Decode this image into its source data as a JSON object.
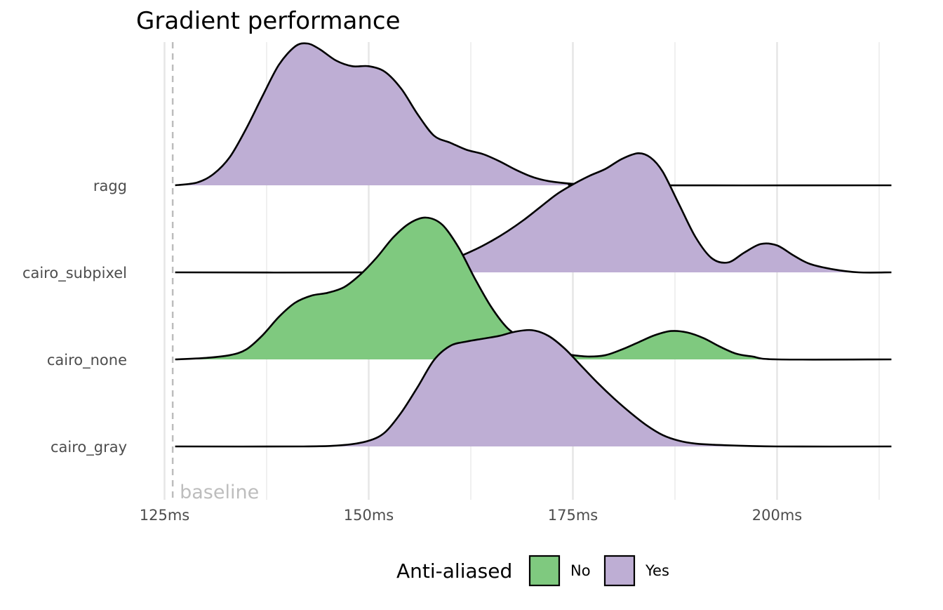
{
  "chart_data": {
    "type": "area",
    "subtype": "ridgeline-density",
    "title": "Gradient performance",
    "xlabel": "",
    "ylabel": "",
    "x_unit": "ms",
    "xlim": [
      124.6,
      214.0
    ],
    "x_ticks": [
      125,
      150,
      175,
      200
    ],
    "x_tick_labels": [
      "125ms",
      "150ms",
      "175ms",
      "200ms"
    ],
    "grid": true,
    "baseline": {
      "value": 126,
      "label": "baseline"
    },
    "categories": [
      "ragg",
      "cairo_subpixel",
      "cairo_none",
      "cairo_gray"
    ],
    "legend": {
      "title": "Anti-aliased",
      "position": "bottom",
      "entries": [
        {
          "label": "No",
          "color": "#7fc97f"
        },
        {
          "label": "Yes",
          "color": "#beaed4"
        }
      ]
    },
    "colors": {
      "No": "#7fc97f",
      "Yes": "#beaed4"
    },
    "x_range": [
      126.3,
      214.0
    ],
    "series": [
      {
        "name": "ragg",
        "anti_aliased": "Yes",
        "density": [
          [
            126.3,
            0.0
          ],
          [
            129,
            0.02
          ],
          [
            131,
            0.08
          ],
          [
            133,
            0.2
          ],
          [
            135,
            0.4
          ],
          [
            137,
            0.63
          ],
          [
            139,
            0.85
          ],
          [
            141,
            0.98
          ],
          [
            142.5,
            1.0
          ],
          [
            144,
            0.96
          ],
          [
            146,
            0.88
          ],
          [
            148,
            0.84
          ],
          [
            150,
            0.84
          ],
          [
            152,
            0.8
          ],
          [
            154,
            0.68
          ],
          [
            156,
            0.5
          ],
          [
            158,
            0.35
          ],
          [
            160,
            0.3
          ],
          [
            162,
            0.25
          ],
          [
            164,
            0.22
          ],
          [
            166,
            0.17
          ],
          [
            168,
            0.11
          ],
          [
            170,
            0.06
          ],
          [
            172,
            0.03
          ],
          [
            175,
            0.01
          ],
          [
            178,
            0.0
          ],
          [
            214.0,
            0.0
          ]
        ]
      },
      {
        "name": "cairo_subpixel",
        "anti_aliased": "Yes",
        "density": [
          [
            126.3,
            0.0
          ],
          [
            150,
            0.0
          ],
          [
            155,
            0.02
          ],
          [
            160,
            0.09
          ],
          [
            163,
            0.16
          ],
          [
            165,
            0.22
          ],
          [
            167,
            0.29
          ],
          [
            169,
            0.37
          ],
          [
            171,
            0.46
          ],
          [
            173,
            0.55
          ],
          [
            175,
            0.62
          ],
          [
            177,
            0.68
          ],
          [
            179,
            0.73
          ],
          [
            181,
            0.8
          ],
          [
            183,
            0.84
          ],
          [
            184.5,
            0.81
          ],
          [
            186,
            0.71
          ],
          [
            188,
            0.48
          ],
          [
            190,
            0.25
          ],
          [
            192,
            0.1
          ],
          [
            194,
            0.07
          ],
          [
            196,
            0.14
          ],
          [
            198,
            0.2
          ],
          [
            200,
            0.19
          ],
          [
            202,
            0.12
          ],
          [
            204,
            0.06
          ],
          [
            207,
            0.02
          ],
          [
            210,
            0.0
          ],
          [
            214.0,
            0.0
          ]
        ]
      },
      {
        "name": "cairo_none",
        "anti_aliased": "No",
        "density": [
          [
            126.3,
            0.0
          ],
          [
            130,
            0.01
          ],
          [
            133,
            0.03
          ],
          [
            135,
            0.07
          ],
          [
            137,
            0.17
          ],
          [
            139,
            0.3
          ],
          [
            141,
            0.4
          ],
          [
            143,
            0.45
          ],
          [
            145,
            0.47
          ],
          [
            147,
            0.51
          ],
          [
            149,
            0.6
          ],
          [
            151,
            0.72
          ],
          [
            153,
            0.86
          ],
          [
            155,
            0.96
          ],
          [
            157,
            1.0
          ],
          [
            159,
            0.95
          ],
          [
            161,
            0.79
          ],
          [
            163,
            0.57
          ],
          [
            165,
            0.37
          ],
          [
            167,
            0.22
          ],
          [
            169,
            0.14
          ],
          [
            171,
            0.08
          ],
          [
            173,
            0.05
          ],
          [
            175,
            0.03
          ],
          [
            177,
            0.02
          ],
          [
            179,
            0.03
          ],
          [
            181,
            0.07
          ],
          [
            183,
            0.12
          ],
          [
            185,
            0.17
          ],
          [
            187,
            0.2
          ],
          [
            189,
            0.19
          ],
          [
            191,
            0.15
          ],
          [
            193,
            0.09
          ],
          [
            195,
            0.04
          ],
          [
            197,
            0.02
          ],
          [
            200,
            0.0
          ],
          [
            214.0,
            0.0
          ]
        ]
      },
      {
        "name": "cairo_gray",
        "anti_aliased": "Yes",
        "density": [
          [
            126.3,
            0.0
          ],
          [
            142,
            0.0
          ],
          [
            147,
            0.01
          ],
          [
            150,
            0.04
          ],
          [
            152,
            0.1
          ],
          [
            154,
            0.24
          ],
          [
            156,
            0.42
          ],
          [
            158,
            0.61
          ],
          [
            160,
            0.71
          ],
          [
            162,
            0.74
          ],
          [
            164,
            0.76
          ],
          [
            166,
            0.78
          ],
          [
            168,
            0.81
          ],
          [
            170,
            0.82
          ],
          [
            172,
            0.78
          ],
          [
            174,
            0.69
          ],
          [
            176,
            0.57
          ],
          [
            178,
            0.45
          ],
          [
            180,
            0.34
          ],
          [
            182,
            0.24
          ],
          [
            184,
            0.15
          ],
          [
            186,
            0.08
          ],
          [
            188,
            0.04
          ],
          [
            190,
            0.02
          ],
          [
            193,
            0.01
          ],
          [
            200,
            0.0
          ],
          [
            214.0,
            0.0
          ]
        ]
      }
    ]
  }
}
